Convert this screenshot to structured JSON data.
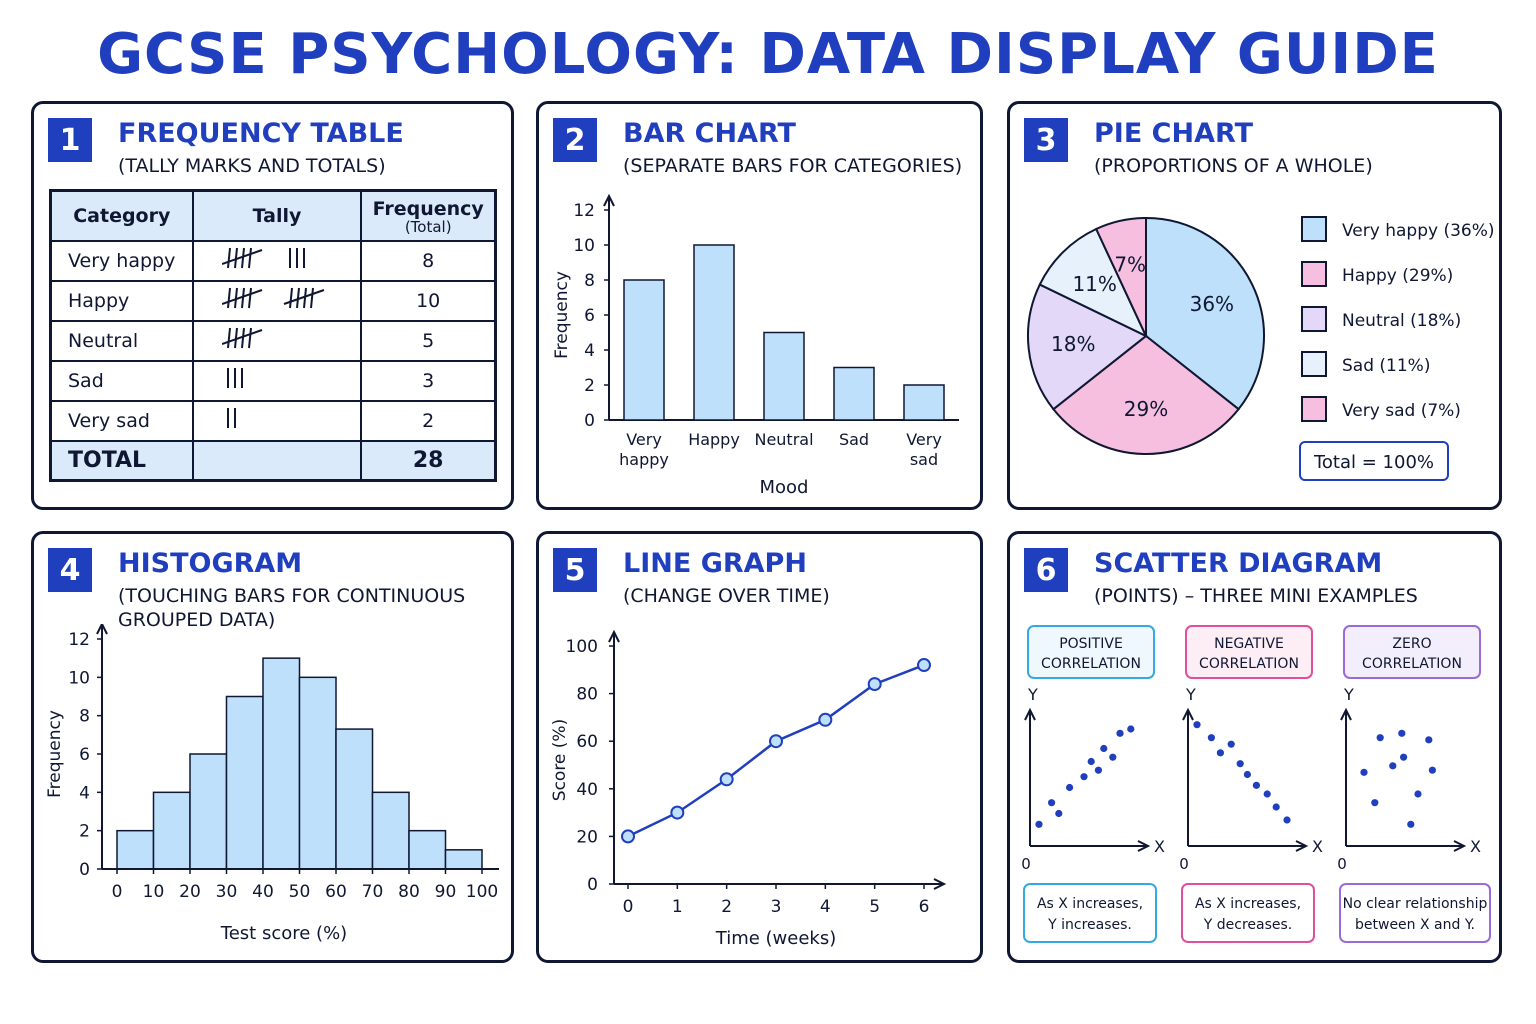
{
  "title": "GCSE PSYCHOLOGY: DATA DISPLAY GUIDE",
  "colors": {
    "brand": "#1f3fbf",
    "bar_fill": "#bfe0fa",
    "pink": "#f6bfe0",
    "lavender": "#e3d8f8",
    "pale_blue": "#e6f1fc",
    "scatter_point": "#1f3fbf"
  },
  "panels": {
    "p1": {
      "number": "1",
      "title": "FREQUENCY TABLE",
      "subtitle": "(TALLY MARKS AND TOTALS)",
      "headers": {
        "category": "Category",
        "tally": "Tally",
        "frequency": "Frequency",
        "frequency_sub": "(Total)"
      },
      "rows": [
        {
          "category": "Very happy",
          "tally": 8,
          "frequency": "8"
        },
        {
          "category": "Happy",
          "tally": 10,
          "frequency": "10"
        },
        {
          "category": "Neutral",
          "tally": 5,
          "frequency": "5"
        },
        {
          "category": "Sad",
          "tally": 3,
          "frequency": "3"
        },
        {
          "category": "Very sad",
          "tally": 2,
          "frequency": "2"
        }
      ],
      "total_label": "TOTAL",
      "total_value": "28"
    },
    "p2": {
      "number": "2",
      "title": "BAR CHART",
      "subtitle": "(SEPARATE BARS FOR CATEGORIES)"
    },
    "p3": {
      "number": "3",
      "title": "PIE CHART",
      "subtitle": "(PROPORTIONS OF A WHOLE)",
      "legend": [
        {
          "label": "Very happy (36%)",
          "color": "#bfe0fa"
        },
        {
          "label": "Happy (29%)",
          "color": "#f6bfe0"
        },
        {
          "label": "Neutral (18%)",
          "color": "#e3d8f8"
        },
        {
          "label": "Sad (11%)",
          "color": "#e6f1fc"
        },
        {
          "label": "Very sad (7%)",
          "color": "#f6bfe0"
        }
      ],
      "total_box": "Total = 100%"
    },
    "p4": {
      "number": "4",
      "title": "HISTOGRAM",
      "subtitle_line1": "(TOUCHING BARS FOR CONTINUOUS",
      "subtitle_line2": "GROUPED DATA)"
    },
    "p5": {
      "number": "5",
      "title": "LINE GRAPH",
      "subtitle": "(CHANGE OVER TIME)"
    },
    "p6": {
      "number": "6",
      "title": "SCATTER DIAGRAM",
      "subtitle": "(POINTS) – THREE MINI EXAMPLES",
      "examples": [
        {
          "tag_line1": "POSITIVE",
          "tag_line2": "CORRELATION",
          "desc_line1": "As X increases,",
          "desc_line2": "Y increases.",
          "color": "#36a9e1",
          "bg": "#eef8fd"
        },
        {
          "tag_line1": "NEGATIVE",
          "tag_line2": "CORRELATION",
          "desc_line1": "As X increases,",
          "desc_line2": "Y decreases.",
          "color": "#e0509a",
          "bg": "#fdeef5"
        },
        {
          "tag_line1": "ZERO",
          "tag_line2": "CORRELATION",
          "desc_line1": "No clear relationship",
          "desc_line2": "between X and Y.",
          "color": "#9a6ad6",
          "bg": "#f3eefc"
        }
      ],
      "axis_y": "Y",
      "axis_x": "X",
      "axis_origin": "0"
    }
  },
  "chart_data": [
    {
      "type": "bar",
      "categories": [
        "Very happy",
        "Happy",
        "Neutral",
        "Sad",
        "Very sad"
      ],
      "tick_labels": [
        [
          "Very",
          "happy"
        ],
        [
          "Happy"
        ],
        [
          "Neutral"
        ],
        [
          "Sad"
        ],
        [
          "Very",
          "sad"
        ]
      ],
      "values": [
        8,
        10,
        5,
        3,
        2
      ],
      "xlabel": "Mood",
      "ylabel": "Frequency",
      "ylim": [
        0,
        12
      ],
      "yticks": [
        0,
        2,
        4,
        6,
        8,
        10,
        12
      ]
    },
    {
      "type": "pie",
      "labels": [
        "Very happy",
        "Happy",
        "Neutral",
        "Sad",
        "Very sad"
      ],
      "values": [
        36,
        29,
        18,
        11,
        7
      ],
      "value_labels": [
        "36%",
        "29%",
        "18%",
        "11%",
        "7%"
      ],
      "colors": [
        "#bfe0fa",
        "#f6bfe0",
        "#e3d8f8",
        "#e6f1fc",
        "#f6bfe0"
      ]
    },
    {
      "type": "bar",
      "subtype": "histogram",
      "bins": [
        [
          0,
          10
        ],
        [
          10,
          20
        ],
        [
          20,
          30
        ],
        [
          30,
          40
        ],
        [
          40,
          50
        ],
        [
          50,
          60
        ],
        [
          60,
          70
        ],
        [
          70,
          80
        ],
        [
          80,
          90
        ],
        [
          90,
          100
        ]
      ],
      "values": [
        2,
        4,
        6,
        9,
        11,
        10,
        7.3,
        4,
        2,
        1
      ],
      "xticks": [
        0,
        10,
        20,
        30,
        40,
        50,
        60,
        70,
        80,
        90,
        100
      ],
      "yticks": [
        0,
        2,
        4,
        6,
        8,
        10,
        12
      ],
      "xlabel": "Test score (%)",
      "ylabel": "Frequency",
      "xlim": [
        0,
        100
      ],
      "ylim": [
        0,
        12
      ]
    },
    {
      "type": "line",
      "x": [
        0,
        1,
        2,
        3,
        4,
        5,
        6
      ],
      "y": [
        20,
        30,
        44,
        60,
        69,
        84,
        92
      ],
      "xticks": [
        0,
        1,
        2,
        3,
        4,
        5,
        6
      ],
      "yticks": [
        0,
        20,
        40,
        60,
        80,
        100
      ],
      "xlabel": "Time (weeks)",
      "ylabel": "Score (%)",
      "xlim": [
        0,
        6
      ],
      "ylim": [
        0,
        100
      ]
    },
    {
      "type": "scatter",
      "name": "POSITIVE CORRELATION",
      "x": [
        0.5,
        1.2,
        1.6,
        2.2,
        3.0,
        3.4,
        3.8,
        4.1,
        4.6,
        5.0,
        5.6
      ],
      "y": [
        1.0,
        2.0,
        1.5,
        2.7,
        3.2,
        3.9,
        3.5,
        4.5,
        4.1,
        5.2,
        5.4
      ],
      "xlim": [
        0,
        6
      ],
      "ylim": [
        0,
        6
      ]
    },
    {
      "type": "scatter",
      "name": "NEGATIVE CORRELATION",
      "x": [
        0.5,
        1.3,
        1.8,
        2.4,
        2.9,
        3.3,
        3.8,
        4.4,
        4.9,
        5.5
      ],
      "y": [
        5.6,
        5.0,
        4.3,
        4.7,
        3.8,
        3.3,
        2.8,
        2.4,
        1.8,
        1.2
      ],
      "xlim": [
        0,
        6
      ],
      "ylim": [
        0,
        6
      ]
    },
    {
      "type": "scatter",
      "name": "ZERO CORRELATION",
      "x": [
        1.0,
        1.6,
        1.9,
        2.6,
        3.1,
        3.2,
        3.6,
        4.0,
        4.6,
        4.8
      ],
      "y": [
        3.4,
        2.0,
        5.0,
        3.7,
        5.2,
        4.1,
        1.0,
        2.4,
        4.9,
        3.5
      ],
      "xlim": [
        0,
        6
      ],
      "ylim": [
        0,
        6
      ]
    }
  ]
}
